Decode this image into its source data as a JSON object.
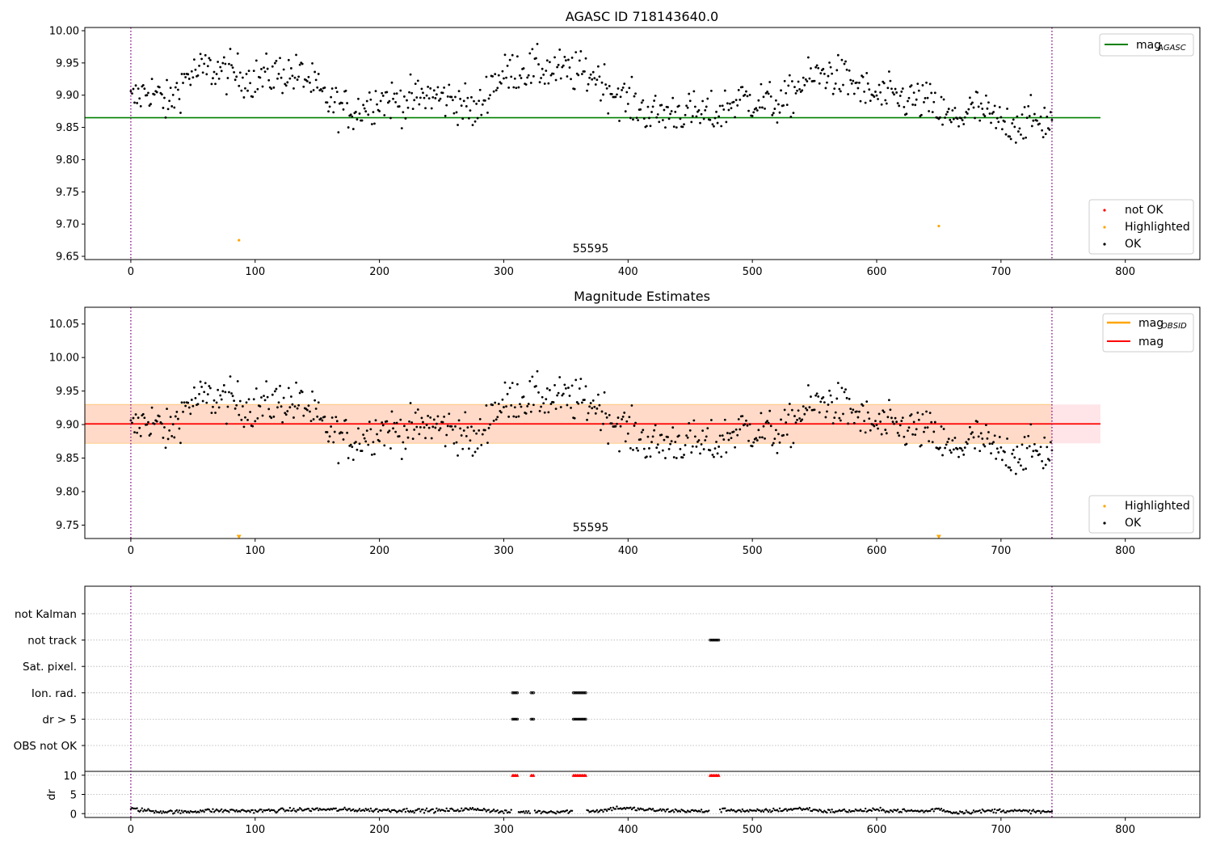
{
  "chart_data": [
    {
      "type": "scatter",
      "title": "AGASC ID 718143640.0",
      "xlim": [
        -37,
        860
      ],
      "ylim": [
        9.645,
        10.005
      ],
      "xticks": [
        "0",
        "100",
        "200",
        "300",
        "400",
        "500",
        "600",
        "700",
        "800"
      ],
      "yticks": [
        "9.65",
        "9.70",
        "9.75",
        "9.80",
        "9.85",
        "9.90",
        "9.95",
        "10.00"
      ],
      "xlabel": "",
      "ylabel": "",
      "grid": false,
      "vlines": [
        0,
        741
      ],
      "annotation": "55595",
      "reference_line": {
        "name": "mag_AGASC",
        "value": 9.865,
        "x_range": [
          -37,
          780
        ],
        "color": "#008000"
      },
      "highlighted_points": [
        {
          "x": 87,
          "y": 9.675
        },
        {
          "x": 650,
          "y": 9.697
        }
      ],
      "series_profile": [
        [
          0,
          9.89
        ],
        [
          15,
          9.91
        ],
        [
          30,
          9.885
        ],
        [
          45,
          9.93
        ],
        [
          60,
          9.94
        ],
        [
          80,
          9.935
        ],
        [
          100,
          9.925
        ],
        [
          120,
          9.935
        ],
        [
          140,
          9.93
        ],
        [
          155,
          9.895
        ],
        [
          170,
          9.88
        ],
        [
          180,
          9.875
        ],
        [
          200,
          9.895
        ],
        [
          220,
          9.89
        ],
        [
          240,
          9.9
        ],
        [
          265,
          9.89
        ],
        [
          278,
          9.87
        ],
        [
          290,
          9.92
        ],
        [
          310,
          9.94
        ],
        [
          335,
          9.94
        ],
        [
          360,
          9.935
        ],
        [
          375,
          9.93
        ],
        [
          385,
          9.91
        ],
        [
          400,
          9.89
        ],
        [
          420,
          9.87
        ],
        [
          440,
          9.875
        ],
        [
          460,
          9.87
        ],
        [
          470,
          9.87
        ],
        [
          490,
          9.895
        ],
        [
          510,
          9.89
        ],
        [
          525,
          9.885
        ],
        [
          540,
          9.92
        ],
        [
          560,
          9.935
        ],
        [
          580,
          9.92
        ],
        [
          595,
          9.9
        ],
        [
          620,
          9.895
        ],
        [
          640,
          9.89
        ],
        [
          660,
          9.86
        ],
        [
          680,
          9.88
        ],
        [
          700,
          9.855
        ],
        [
          720,
          9.86
        ],
        [
          740,
          9.86
        ]
      ],
      "legend": {
        "line": "mag",
        "line_sub": "AGASC",
        "items": [
          "not OK",
          "Highlighted",
          "OK"
        ]
      },
      "colors": {
        "ok": "#000000",
        "not_ok": "#ff0000",
        "highlighted": "#ffa500",
        "vline": "#800080"
      }
    },
    {
      "type": "scatter",
      "title": "Magnitude Estimates",
      "xlim": [
        -37,
        860
      ],
      "ylim": [
        9.73,
        10.075
      ],
      "xticks": [
        "0",
        "100",
        "200",
        "300",
        "400",
        "500",
        "600",
        "700",
        "800"
      ],
      "yticks": [
        "9.75",
        "9.80",
        "9.85",
        "9.90",
        "9.95",
        "10.00",
        "10.05"
      ],
      "xlabel": "",
      "ylabel": "",
      "grid": false,
      "vlines": [
        0,
        741
      ],
      "annotation": "55595",
      "mag_line": {
        "value": 9.901,
        "color": "#ff0000"
      },
      "band": {
        "low": 9.872,
        "high": 9.93,
        "obsid_x_range": [
          -37,
          741
        ],
        "full_x_range": [
          -37,
          780
        ],
        "obsid_color": "#ffdac8",
        "full_color": "#ffe4e8"
      },
      "highlighted_points": [
        {
          "x": 87,
          "y": 9.733
        },
        {
          "x": 650,
          "y": 9.733
        }
      ],
      "legend": {
        "line1": "mag",
        "line1_sub": "OBSID",
        "line2": "mag",
        "items": [
          "Highlighted",
          "OK"
        ]
      },
      "colors": {
        "ok": "#000000",
        "highlighted": "#ffa500",
        "obsid": "#ffa500",
        "mag": "#ff0000",
        "vline": "#800080"
      }
    },
    {
      "type": "scatter",
      "title": "",
      "xlim": [
        -37,
        860
      ],
      "xticks": [
        "0",
        "100",
        "200",
        "300",
        "400",
        "500",
        "600",
        "700",
        "800"
      ],
      "vlines": [
        0,
        741
      ],
      "flag_labels": [
        "not Kalman",
        "not track",
        "Sat. pixel.",
        "Ion. rad.",
        "dr > 5",
        "OBS not OK"
      ],
      "flag_marks": {
        "not track": [
          [
            466,
            473
          ]
        ],
        "Ion. rad.": [
          [
            307,
            311
          ],
          [
            322,
            324
          ],
          [
            356,
            366
          ]
        ],
        "dr > 5": [
          [
            307,
            311
          ],
          [
            322,
            324
          ],
          [
            356,
            366
          ]
        ]
      },
      "dr_axis": {
        "ylabel": "dr",
        "yticks": [
          "0",
          "5",
          "10"
        ],
        "ylim": [
          -1,
          11
        ]
      },
      "dr_outliers": [
        [
          307,
          311
        ],
        [
          322,
          324
        ],
        [
          356,
          366
        ],
        [
          466,
          473
        ]
      ],
      "dr_outlier_value": 10,
      "dr_profile": [
        [
          0,
          1.2
        ],
        [
          20,
          0.6
        ],
        [
          40,
          0.4
        ],
        [
          60,
          0.8
        ],
        [
          100,
          0.7
        ],
        [
          150,
          1.1
        ],
        [
          200,
          0.9
        ],
        [
          250,
          0.8
        ],
        [
          280,
          1.2
        ],
        [
          300,
          0.4
        ],
        [
          340,
          0.5
        ],
        [
          380,
          0.8
        ],
        [
          390,
          1.5
        ],
        [
          420,
          0.9
        ],
        [
          460,
          0.6
        ],
        [
          480,
          1.0
        ],
        [
          500,
          0.6
        ],
        [
          520,
          0.9
        ],
        [
          540,
          1.3
        ],
        [
          560,
          0.6
        ],
        [
          600,
          0.9
        ],
        [
          640,
          0.6
        ],
        [
          650,
          1.3
        ],
        [
          660,
          0.3
        ],
        [
          700,
          0.8
        ],
        [
          740,
          0.4
        ]
      ]
    }
  ]
}
